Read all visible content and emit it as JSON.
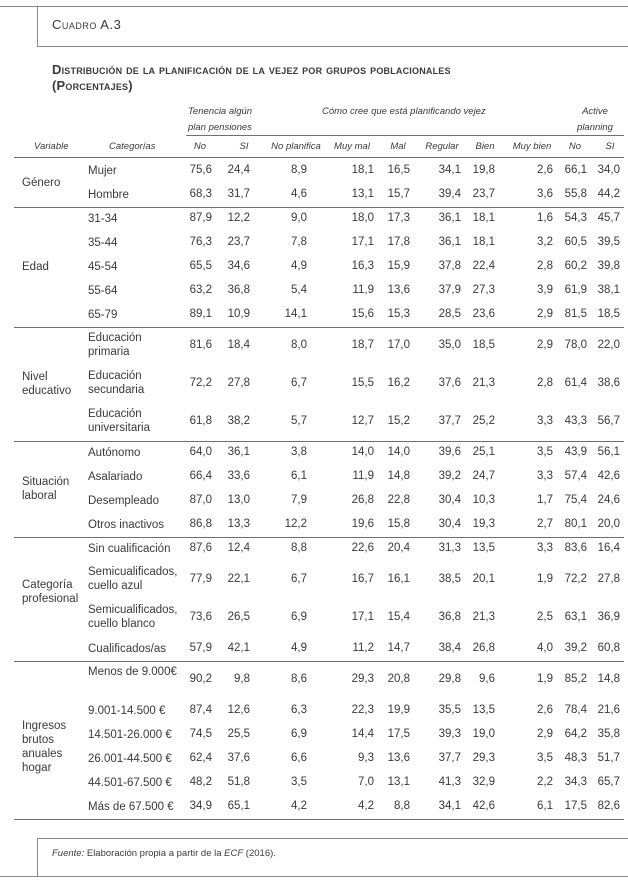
{
  "label": "Cuadro A.3",
  "title_line1": "Distribución de la planificación de la vejez por grupos poblacionales",
  "title_line2": "(Porcentajes)",
  "headers": {
    "group1_line1": "Tenencia algún",
    "group1_line2": "plan pensiones",
    "group2": "Cómo cree que está planificando vejez",
    "group3_line1": "Active",
    "group3_line2": "planning",
    "variable": "Variable",
    "categorias": "Categorías",
    "cols": [
      "No",
      "SI",
      "No planifica",
      "Muy mal",
      "Mal",
      "Regular",
      "Bien",
      "Muy bien",
      "No",
      "SI"
    ]
  },
  "groups": [
    {
      "variable": "Género",
      "rows": [
        {
          "cat": "Mujer",
          "v": [
            "75,6",
            "24,4",
            "8,9",
            "18,1",
            "16,5",
            "34,1",
            "19,8",
            "2,6",
            "66,1",
            "34,0"
          ]
        },
        {
          "cat": "Hombre",
          "v": [
            "68,3",
            "31,7",
            "4,6",
            "13,1",
            "15,7",
            "39,4",
            "23,7",
            "3,6",
            "55,8",
            "44,2"
          ]
        }
      ]
    },
    {
      "variable": "Edad",
      "rows": [
        {
          "cat": "31-34",
          "v": [
            "87,9",
            "12,2",
            "9,0",
            "18,0",
            "17,3",
            "36,1",
            "18,1",
            "1,6",
            "54,3",
            "45,7"
          ]
        },
        {
          "cat": "35-44",
          "v": [
            "76,3",
            "23,7",
            "7,8",
            "17,1",
            "17,8",
            "36,1",
            "18,1",
            "3,2",
            "60,5",
            "39,5"
          ]
        },
        {
          "cat": "45-54",
          "v": [
            "65,5",
            "34,6",
            "4,9",
            "16,3",
            "15,9",
            "37,8",
            "22,4",
            "2,8",
            "60,2",
            "39,8"
          ]
        },
        {
          "cat": "55-64",
          "v": [
            "63,2",
            "36,8",
            "5,4",
            "11,9",
            "13,6",
            "37,9",
            "27,3",
            "3,9",
            "61,9",
            "38,1"
          ]
        },
        {
          "cat": "65-79",
          "v": [
            "89,1",
            "10,9",
            "14,1",
            "15,6",
            "15,3",
            "28,5",
            "23,6",
            "2,9",
            "81,5",
            "18,5"
          ]
        }
      ]
    },
    {
      "variable": "Nivel educativo",
      "rows": [
        {
          "cat": "Educación primaria",
          "v": [
            "81,6",
            "18,4",
            "8,0",
            "18,7",
            "17,0",
            "35,0",
            "18,5",
            "2,9",
            "78,0",
            "22,0"
          ]
        },
        {
          "cat": "Educación secundaria",
          "v": [
            "72,2",
            "27,8",
            "6,7",
            "15,5",
            "16,2",
            "37,6",
            "21,3",
            "2,8",
            "61,4",
            "38,6"
          ]
        },
        {
          "cat": "Educación universitaria",
          "v": [
            "61,8",
            "38,2",
            "5,7",
            "12,7",
            "15,2",
            "37,7",
            "25,2",
            "3,3",
            "43,3",
            "56,7"
          ]
        }
      ]
    },
    {
      "variable": "Situación laboral",
      "rows": [
        {
          "cat": "Autónomo",
          "v": [
            "64,0",
            "36,1",
            "3,8",
            "14,0",
            "14,0",
            "39,6",
            "25,1",
            "3,5",
            "43,9",
            "56,1"
          ]
        },
        {
          "cat": "Asalariado",
          "v": [
            "66,4",
            "33,6",
            "6,1",
            "11,9",
            "14,8",
            "39,2",
            "24,7",
            "3,3",
            "57,4",
            "42,6"
          ]
        },
        {
          "cat": "Desempleado",
          "v": [
            "87,0",
            "13,0",
            "7,9",
            "26,8",
            "22,8",
            "30,4",
            "10,3",
            "1,7",
            "75,4",
            "24,6"
          ]
        },
        {
          "cat": "Otros inactivos",
          "v": [
            "86,8",
            "13,3",
            "12,2",
            "19,6",
            "15,8",
            "30,4",
            "19,3",
            "2,7",
            "80,1",
            "20,0"
          ]
        }
      ]
    },
    {
      "variable": "Categoría profesional",
      "rows": [
        {
          "cat": "Sin cualificación",
          "v": [
            "87,6",
            "12,4",
            "8,8",
            "22,6",
            "20,4",
            "31,3",
            "13,5",
            "3,3",
            "83,6",
            "16,4"
          ]
        },
        {
          "cat": "Semicualificados, cuello azul",
          "v": [
            "77,9",
            "22,1",
            "6,7",
            "16,7",
            "16,1",
            "38,5",
            "20,1",
            "1,9",
            "72,2",
            "27,8"
          ]
        },
        {
          "cat": "Semicualificados, cuello blanco",
          "v": [
            "73,6",
            "26,5",
            "6,9",
            "17,1",
            "15,4",
            "36,8",
            "21,3",
            "2,5",
            "63,1",
            "36,9"
          ]
        },
        {
          "cat": "Cualificados/as",
          "v": [
            "57,9",
            "42,1",
            "4,9",
            "11,2",
            "14,7",
            "38,4",
            "26,8",
            "4,0",
            "39,2",
            "60,8"
          ]
        }
      ]
    },
    {
      "variable": "Ingresos brutos anuales hogar",
      "rows": [
        {
          "cat": "Menos de 9.000€",
          "v": [
            "90,2",
            "9,8",
            "8,6",
            "29,3",
            "20,8",
            "29,8",
            "9,6",
            "1,9",
            "85,2",
            "14,8"
          ]
        },
        {
          "cat": "9.001-14.500 €",
          "v": [
            "87,4",
            "12,6",
            "6,3",
            "22,3",
            "19,9",
            "35,5",
            "13,5",
            "2,6",
            "78,4",
            "21,6"
          ]
        },
        {
          "cat": "14.501-26.000 €",
          "v": [
            "74,5",
            "25,5",
            "6,9",
            "14,4",
            "17,5",
            "39,3",
            "19,0",
            "2,9",
            "64,2",
            "35,8"
          ]
        },
        {
          "cat": "26.001-44.500 €",
          "v": [
            "62,4",
            "37,6",
            "6,6",
            "9,3",
            "13,6",
            "37,7",
            "29,3",
            "3,5",
            "48,3",
            "51,7"
          ]
        },
        {
          "cat": "44.501-67.500 €",
          "v": [
            "48,2",
            "51,8",
            "3,5",
            "7,0",
            "13,1",
            "41,3",
            "32,9",
            "2,2",
            "34,3",
            "65,7"
          ]
        },
        {
          "cat": "Más de 67.500 €",
          "v": [
            "34,9",
            "65,1",
            "4,2",
            "4,2",
            "8,8",
            "34,1",
            "42,6",
            "6,1",
            "17,5",
            "82,6"
          ]
        }
      ]
    }
  ],
  "footer": {
    "fuente": "Fuente:",
    "text_a": " Elaboración propia a partir de la ",
    "ecf": "ECF",
    "text_b": " (2016)."
  }
}
